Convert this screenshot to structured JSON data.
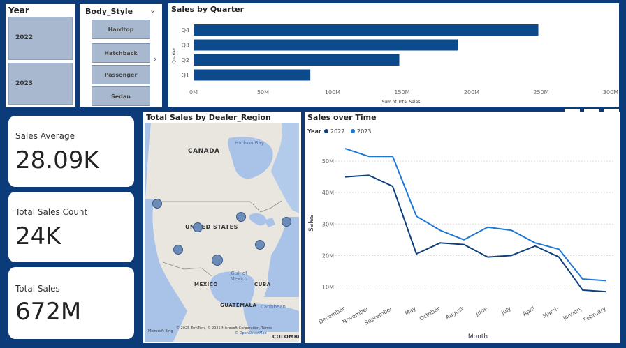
{
  "year_slicer": {
    "title": "Year",
    "items": [
      "2022",
      "2023"
    ]
  },
  "body_style_slicer": {
    "title": "Body_Style",
    "items": [
      "Hardtop",
      "Hatchback",
      "Passenger",
      "Sedan"
    ]
  },
  "bar_chart": {
    "title": "Sales by Quarter"
  },
  "kpis": [
    {
      "label": "Sales Average",
      "value": "28.09K"
    },
    {
      "label": "Total Sales Count",
      "value": "24K"
    },
    {
      "label": "Total Sales",
      "value": "672M"
    }
  ],
  "map": {
    "title": "Total Sales by Dealer_Region",
    "labels": {
      "canada": "CANADA",
      "usa": "UNITED STATES",
      "mexico": "MEXICO",
      "cuba": "CUBA",
      "guatemala": "GUATEMALA",
      "caribbean": "Caribbean",
      "colombia": "COLOMBI",
      "hudson": "Hudson Bay",
      "gulf": "Gulf of\nMexico"
    },
    "attribution": "© 2025 TomTom, © 2025 Microsoft Corporation, Terms",
    "osm": "© OpenStreetMap",
    "brand": "Microsoft Bing"
  },
  "colors": {
    "background": "#0b3b78",
    "bar": "#0d4a8b",
    "series_2022": "#0e3f7a",
    "series_2023": "#1f77d4"
  },
  "chart_data": [
    {
      "type": "bar",
      "title": "Sales by Quarter",
      "orientation": "horizontal",
      "categories": [
        "Q4",
        "Q3",
        "Q2",
        "Q1"
      ],
      "values": [
        248,
        190,
        148,
        84
      ],
      "xlabel": "Sum of Total Sales",
      "ylabel": "Quarter",
      "xticks": [
        "0M",
        "50M",
        "100M",
        "150M",
        "200M",
        "250M",
        "300M"
      ],
      "xlim": [
        0,
        300
      ],
      "grid": false
    },
    {
      "type": "line",
      "title": "Sales over Time",
      "legend_title": "Year",
      "legend_position": "top-left",
      "categories": [
        "December",
        "November",
        "September",
        "May",
        "October",
        "August",
        "June",
        "July",
        "April",
        "March",
        "January",
        "February"
      ],
      "series": [
        {
          "name": "2022",
          "values": [
            45,
            45.5,
            42,
            20.5,
            24,
            23.5,
            19.5,
            20,
            23,
            19.5,
            9,
            8.5
          ]
        },
        {
          "name": "2023",
          "values": [
            54,
            51.5,
            51.5,
            32.5,
            28,
            25,
            29,
            28,
            24,
            22,
            12.5,
            12
          ]
        }
      ],
      "xlabel": "Month",
      "ylabel": "Sales",
      "yticks": [
        "10M",
        "20M",
        "30M",
        "40M",
        "50M"
      ],
      "ylim": [
        5,
        56
      ],
      "grid": true
    }
  ]
}
